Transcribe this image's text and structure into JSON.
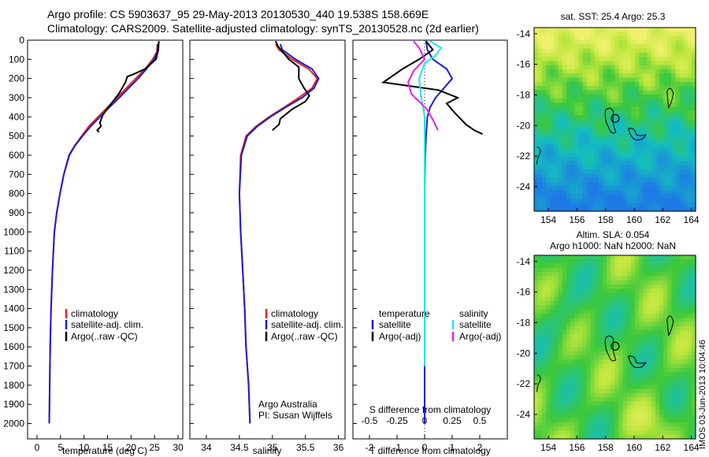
{
  "header": {
    "line1": "Argo profile: CS 5903637_95 29-May-2013 20130530_440 19.538S 158.669E",
    "line2": "Climatology: CARS2009. Satellite-adjusted climatology: synTS_20130528.nc (2d earlier)"
  },
  "colors": {
    "climatology": "#e8231e",
    "satellite": "#1c1cd6",
    "argo": "#000000",
    "sat_sal": "#22e6e6",
    "argo_sal": "#e81ee8"
  },
  "chart_data": [
    {
      "type": "line",
      "name": "temperature-profile",
      "xlabel": "temperature (deg C)",
      "xlim": [
        -2,
        31
      ],
      "ylim": [
        0,
        2080
      ],
      "xticks": [
        "0",
        "5",
        "10",
        "15",
        "20",
        "25",
        "30"
      ],
      "yticks": [
        "0",
        "100",
        "200",
        "300",
        "400",
        "500",
        "600",
        "700",
        "800",
        "900",
        "1000",
        "1100",
        "1200",
        "1300",
        "1400",
        "1500",
        "1600",
        "1700",
        "1800",
        "1900",
        "2000"
      ],
      "legend": [
        "climatology",
        "satellite-adj. clim.",
        "Argo(..raw -QC)"
      ],
      "series": [
        {
          "name": "climatology",
          "x": [
            25.6,
            25.5,
            24.6,
            23,
            21,
            19,
            17,
            15,
            13,
            11,
            9.5,
            8,
            6.8,
            5.7,
            4.9,
            4.2,
            3.7,
            3.3,
            3,
            2.8,
            2.7,
            2.6
          ],
          "y": [
            20,
            60,
            100,
            150,
            200,
            250,
            300,
            350,
            400,
            450,
            500,
            550,
            600,
            700,
            800,
            900,
            1000,
            1200,
            1400,
            1600,
            1800,
            2000
          ]
        },
        {
          "name": "satellite-adj. clim.",
          "x": [
            25.7,
            25.6,
            24.9,
            23.3,
            21.5,
            19.5,
            17.5,
            15.4,
            13.4,
            11.4,
            9.7,
            8.1,
            6.9,
            5.7,
            4.9,
            4.2,
            3.7,
            3.3,
            3,
            2.8,
            2.7,
            2.6
          ],
          "y": [
            20,
            60,
            100,
            150,
            200,
            250,
            300,
            350,
            400,
            450,
            500,
            550,
            600,
            700,
            800,
            900,
            1000,
            1200,
            1400,
            1600,
            1800,
            2000
          ]
        },
        {
          "name": "Argo(..raw -QC)",
          "x": [
            25.9,
            25.8,
            25.3,
            23,
            20.3,
            19.2,
            18.8,
            17.4,
            15.5,
            14,
            13.4,
            13.6,
            12.8,
            13.2
          ],
          "y": [
            5,
            50,
            100,
            150,
            180,
            190,
            220,
            280,
            340,
            390,
            430,
            450,
            470,
            480
          ]
        }
      ]
    },
    {
      "type": "line",
      "name": "salinity-profile",
      "xlabel": "salinity",
      "xlim": [
        33.75,
        36.1
      ],
      "ylim": [
        0,
        2080
      ],
      "xticks": [
        "34",
        "34.5",
        "35",
        "35.5",
        "36"
      ],
      "legend": [
        "climatology",
        "satellite-adj. clim.",
        "Argo(..raw -QC)"
      ],
      "annotation": [
        "Argo Australia",
        "PI: Susan Wijffels"
      ],
      "series": [
        {
          "name": "climatology",
          "x": [
            35.05,
            35.1,
            35.3,
            35.55,
            35.68,
            35.6,
            35.4,
            35.18,
            34.95,
            34.75,
            34.6,
            34.52,
            34.5,
            34.52,
            34.55,
            34.58,
            34.6,
            34.64,
            34.66
          ],
          "y": [
            20,
            50,
            100,
            150,
            200,
            250,
            300,
            350,
            400,
            450,
            500,
            600,
            800,
            1000,
            1200,
            1400,
            1600,
            1800,
            2000
          ]
        },
        {
          "name": "satellite-adj. clim.",
          "x": [
            35.12,
            35.15,
            35.35,
            35.6,
            35.7,
            35.63,
            35.45,
            35.2,
            34.97,
            34.77,
            34.62,
            34.53,
            34.5,
            34.52,
            34.55,
            34.58,
            34.6,
            34.64,
            34.66
          ],
          "y": [
            20,
            50,
            100,
            150,
            200,
            250,
            300,
            350,
            400,
            450,
            500,
            600,
            800,
            1000,
            1200,
            1400,
            1600,
            1800,
            2000
          ]
        },
        {
          "name": "Argo(..raw -QC)",
          "x": [
            35.05,
            35.08,
            35.25,
            35.4,
            35.4,
            35.48,
            35.56,
            35.5,
            35.3,
            35.12,
            35.1,
            35.0
          ],
          "y": [
            5,
            30,
            100,
            140,
            200,
            250,
            290,
            320,
            360,
            410,
            440,
            470
          ]
        }
      ]
    },
    {
      "type": "line",
      "name": "difference-profile",
      "xlabel": "T difference from climatology",
      "top_xlabel": "S difference from climatology",
      "xlim": [
        -2.6,
        3
      ],
      "top_xlim": [
        -0.65,
        0.75
      ],
      "ylim": [
        0,
        2080
      ],
      "xticks": [
        "-2",
        "-1",
        "0",
        "1",
        "2"
      ],
      "top_xticks": [
        "-0.5",
        "-0.25",
        "0",
        "0.25",
        "0.5"
      ],
      "legend_titles": [
        "temperature",
        "salinity"
      ],
      "legend": [
        "satellite",
        "Argo(-adj)",
        "satellite",
        "Argo(-adj)"
      ],
      "series": [
        {
          "name": "T satellite",
          "x": [
            0.05,
            0.1,
            0.3,
            0.8,
            1.0,
            0.7,
            0.4,
            0.2,
            0.1,
            0.05,
            0.02,
            0.0,
            0.0,
            0.0
          ],
          "y": [
            5,
            50,
            100,
            150,
            200,
            250,
            300,
            350,
            400,
            500,
            600,
            800,
            1200,
            2000
          ]
        },
        {
          "name": "T Argo(-adj)",
          "x": [
            0.05,
            0.3,
            -0.2,
            -0.8,
            -1.5,
            -0.5,
            0.5,
            1.2,
            0.8,
            1.1,
            1.5,
            1.8,
            2.1
          ],
          "y": [
            5,
            50,
            100,
            150,
            220,
            240,
            260,
            300,
            330,
            380,
            440,
            470,
            490
          ]
        },
        {
          "name": "S satellite",
          "x": [
            0.05,
            0.15,
            0.1,
            0.0,
            -0.05,
            -0.03,
            0.0,
            0.0,
            0.0,
            0.0
          ],
          "y": [
            5,
            40,
            80,
            120,
            200,
            300,
            400,
            600,
            1000,
            1700
          ]
        },
        {
          "name": "S Argo(-adj)",
          "x": [
            -0.1,
            -0.05,
            0.0,
            -0.1,
            -0.15,
            -0.12,
            -0.05,
            0.02,
            0.08,
            0.12
          ],
          "y": [
            5,
            40,
            100,
            160,
            220,
            280,
            320,
            360,
            420,
            470
          ]
        }
      ]
    },
    {
      "type": "heatmap",
      "name": "sst-map",
      "title": "sat. SST: 25.4  Argo: 25.3",
      "xlim": [
        153,
        164.3
      ],
      "ylim": [
        -25.6,
        -13.6
      ],
      "xticks": [
        "154",
        "156",
        "158",
        "160",
        "162",
        "164"
      ],
      "yticks": [
        "-14",
        "-16",
        "-18",
        "-20",
        "-22",
        "-24"
      ],
      "marker": {
        "lon": 158.669,
        "lat": -19.538
      }
    },
    {
      "type": "heatmap",
      "name": "sla-map",
      "title": "Altim. SLA: 0.054",
      "subtitle": "Argo h1000: NaN h2000: NaN",
      "xlim": [
        153,
        164.3
      ],
      "ylim": [
        -25.6,
        -13.6
      ],
      "xticks": [
        "154",
        "156",
        "158",
        "160",
        "162",
        "164"
      ],
      "yticks": [
        "-14",
        "-16",
        "-18",
        "-20",
        "-22",
        "-24"
      ],
      "marker": {
        "lon": 158.669,
        "lat": -19.538
      }
    }
  ],
  "side_stamp": "IMOS 03-Jun-2013 10:04:46"
}
